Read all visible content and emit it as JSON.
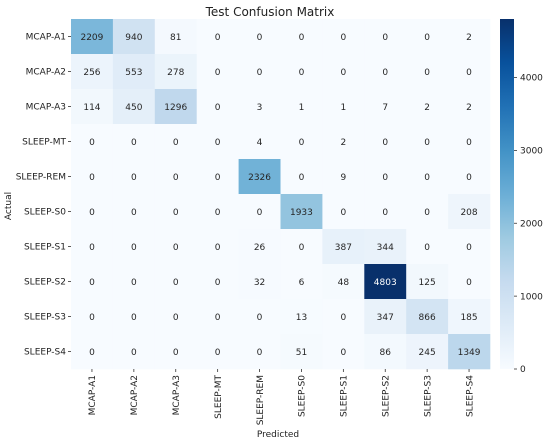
{
  "chart_data": {
    "type": "heatmap",
    "title": "Test Confusion Matrix",
    "xlabel": "Predicted",
    "ylabel": "Actual",
    "rows": [
      "MCAP-A1",
      "MCAP-A2",
      "MCAP-A3",
      "SLEEP-MT",
      "SLEEP-REM",
      "SLEEP-S0",
      "SLEEP-S1",
      "SLEEP-S2",
      "SLEEP-S3",
      "SLEEP-S4"
    ],
    "columns": [
      "MCAP-A1",
      "MCAP-A2",
      "MCAP-A3",
      "SLEEP-MT",
      "SLEEP-REM",
      "SLEEP-S0",
      "SLEEP-S1",
      "SLEEP-S2",
      "SLEEP-S3",
      "SLEEP-S4"
    ],
    "values": [
      [
        2209,
        940,
        81,
        0,
        0,
        0,
        0,
        0,
        0,
        2
      ],
      [
        256,
        553,
        278,
        0,
        0,
        0,
        0,
        0,
        0,
        0
      ],
      [
        114,
        450,
        1296,
        0,
        3,
        1,
        1,
        7,
        2,
        2
      ],
      [
        0,
        0,
        0,
        0,
        4,
        0,
        2,
        0,
        0,
        0
      ],
      [
        0,
        0,
        0,
        0,
        2326,
        0,
        9,
        0,
        0,
        0
      ],
      [
        0,
        0,
        0,
        0,
        0,
        1933,
        0,
        0,
        0,
        208
      ],
      [
        0,
        0,
        0,
        0,
        26,
        0,
        387,
        344,
        0,
        0
      ],
      [
        0,
        0,
        0,
        0,
        32,
        6,
        48,
        4803,
        125,
        0
      ],
      [
        0,
        0,
        0,
        0,
        0,
        13,
        0,
        347,
        866,
        185
      ],
      [
        0,
        0,
        0,
        0,
        0,
        51,
        0,
        86,
        245,
        1349
      ]
    ],
    "colorbar": {
      "colormap": "Blues",
      "min": 0,
      "max": 4803,
      "ticks": [
        0,
        1000,
        2000,
        3000,
        4000
      ]
    }
  }
}
